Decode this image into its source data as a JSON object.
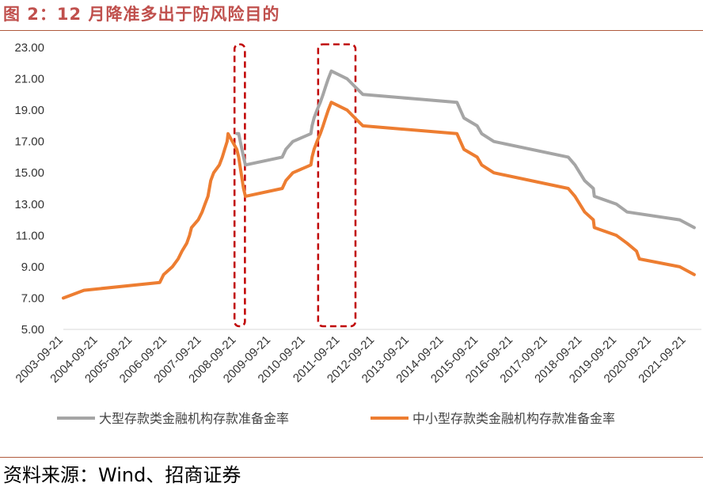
{
  "header": {
    "title": "图 2：12 月降准多出于防风险目的"
  },
  "footer": {
    "source": "资料来源：Wind、招商证券"
  },
  "chart_data": {
    "type": "line",
    "title": "",
    "xlabel": "",
    "ylabel": "",
    "ylim": [
      5,
      23
    ],
    "yticks": [
      "5.00",
      "7.00",
      "9.00",
      "11.00",
      "13.00",
      "15.00",
      "17.00",
      "19.00",
      "21.00",
      "23.00"
    ],
    "xlim": [
      "2003-09-21",
      "2022-03-01"
    ],
    "xticks": [
      "2003-09-21",
      "2004-09-21",
      "2005-09-21",
      "2006-09-21",
      "2007-09-21",
      "2008-09-21",
      "2009-09-21",
      "2010-09-21",
      "2011-09-21",
      "2012-09-21",
      "2013-09-21",
      "2014-09-21",
      "2015-09-21",
      "2016-09-21",
      "2017-09-21",
      "2018-09-21",
      "2019-09-21",
      "2020-09-21",
      "2021-09-21"
    ],
    "grid": false,
    "legend_position": "bottom",
    "highlight_boxes": [
      {
        "from": "2008-09-01",
        "to": "2008-12-20",
        "ymin": 5,
        "ymax": 23
      },
      {
        "from": "2011-02-01",
        "to": "2012-03-01",
        "ymin": 5,
        "ymax": 23
      }
    ],
    "series": [
      {
        "name": "大型存款类金融机构存款准备金率",
        "color": "#a5a5a5",
        "points": [
          [
            "2008-09-25",
            17.5
          ],
          [
            "2008-10-15",
            17.5
          ],
          [
            "2008-12-05",
            16.0
          ],
          [
            "2008-12-25",
            15.5
          ],
          [
            "2010-01-18",
            16.0
          ],
          [
            "2010-02-25",
            16.5
          ],
          [
            "2010-05-10",
            17.0
          ],
          [
            "2010-11-16",
            17.5
          ],
          [
            "2010-11-29",
            18.0
          ],
          [
            "2010-12-20",
            18.5
          ],
          [
            "2011-01-20",
            19.0
          ],
          [
            "2011-02-24",
            19.5
          ],
          [
            "2011-03-25",
            20.0
          ],
          [
            "2011-04-21",
            20.5
          ],
          [
            "2011-05-18",
            21.0
          ],
          [
            "2011-06-20",
            21.5
          ],
          [
            "2011-12-05",
            21.0
          ],
          [
            "2012-02-24",
            20.5
          ],
          [
            "2012-05-18",
            20.0
          ],
          [
            "2015-02-05",
            19.5
          ],
          [
            "2015-04-20",
            18.5
          ],
          [
            "2015-09-06",
            18.0
          ],
          [
            "2015-10-24",
            17.5
          ],
          [
            "2016-03-01",
            17.0
          ],
          [
            "2018-04-25",
            16.0
          ],
          [
            "2018-07-05",
            15.5
          ],
          [
            "2018-10-15",
            14.5
          ],
          [
            "2019-01-15",
            14.0
          ],
          [
            "2019-01-25",
            13.5
          ],
          [
            "2019-09-16",
            13.0
          ],
          [
            "2020-01-06",
            12.5
          ],
          [
            "2021-07-15",
            12.0
          ],
          [
            "2021-12-15",
            11.5
          ]
        ]
      },
      {
        "name": "中小型存款类金融机构存款准备金率",
        "color": "#ed7d31",
        "points": [
          [
            "2003-09-21",
            7.0
          ],
          [
            "2004-04-25",
            7.5
          ],
          [
            "2006-07-05",
            8.0
          ],
          [
            "2006-08-15",
            8.5
          ],
          [
            "2006-11-15",
            9.0
          ],
          [
            "2007-01-15",
            9.5
          ],
          [
            "2007-02-25",
            10.0
          ],
          [
            "2007-04-16",
            10.5
          ],
          [
            "2007-05-15",
            11.0
          ],
          [
            "2007-06-05",
            11.5
          ],
          [
            "2007-08-15",
            12.0
          ],
          [
            "2007-09-25",
            12.5
          ],
          [
            "2007-10-25",
            13.0
          ],
          [
            "2007-11-26",
            13.5
          ],
          [
            "2007-12-25",
            14.5
          ],
          [
            "2008-01-25",
            15.0
          ],
          [
            "2008-03-25",
            15.5
          ],
          [
            "2008-04-25",
            16.0
          ],
          [
            "2008-05-20",
            16.5
          ],
          [
            "2008-06-15",
            17.0
          ],
          [
            "2008-06-25",
            17.5
          ],
          [
            "2008-09-25",
            16.5
          ],
          [
            "2008-10-15",
            16.0
          ],
          [
            "2008-12-05",
            14.0
          ],
          [
            "2008-12-25",
            13.5
          ],
          [
            "2010-01-18",
            14.0
          ],
          [
            "2010-02-25",
            14.5
          ],
          [
            "2010-05-10",
            15.0
          ],
          [
            "2010-11-16",
            15.5
          ],
          [
            "2010-11-29",
            16.0
          ],
          [
            "2010-12-20",
            16.5
          ],
          [
            "2011-01-20",
            17.0
          ],
          [
            "2011-02-24",
            17.5
          ],
          [
            "2011-03-25",
            18.0
          ],
          [
            "2011-04-21",
            18.5
          ],
          [
            "2011-05-18",
            19.0
          ],
          [
            "2011-06-20",
            19.5
          ],
          [
            "2011-12-05",
            19.0
          ],
          [
            "2012-02-24",
            18.5
          ],
          [
            "2012-05-18",
            18.0
          ],
          [
            "2015-02-05",
            17.5
          ],
          [
            "2015-04-20",
            16.5
          ],
          [
            "2015-09-06",
            16.0
          ],
          [
            "2015-10-24",
            15.5
          ],
          [
            "2016-03-01",
            15.0
          ],
          [
            "2018-04-25",
            14.0
          ],
          [
            "2018-07-05",
            13.5
          ],
          [
            "2018-10-15",
            12.5
          ],
          [
            "2019-01-15",
            12.0
          ],
          [
            "2019-01-25",
            11.5
          ],
          [
            "2019-09-16",
            11.0
          ],
          [
            "2020-01-06",
            10.5
          ],
          [
            "2020-04-15",
            10.0
          ],
          [
            "2020-05-15",
            9.5
          ],
          [
            "2021-07-15",
            9.0
          ],
          [
            "2021-12-15",
            8.5
          ]
        ]
      }
    ]
  }
}
